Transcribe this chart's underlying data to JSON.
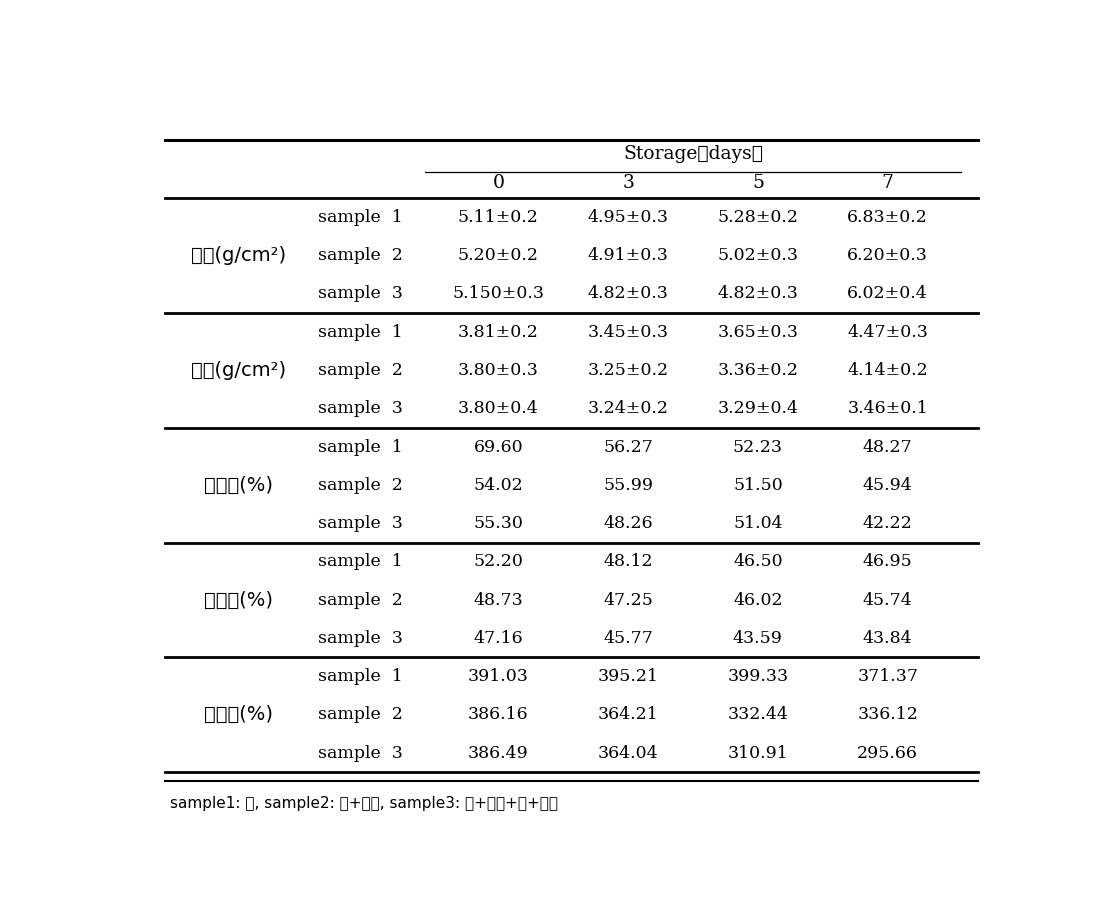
{
  "storage_label": "Storage（days）",
  "col_headers": [
    "0",
    "3",
    "5",
    "7"
  ],
  "row_groups": [
    {
      "label": "강도(g/cm²)",
      "rows": [
        {
          "sample": "sample  1",
          "values": [
            "5.11±0.2",
            "4.95±0.3",
            "5.28±0.2",
            "6.83±0.2"
          ]
        },
        {
          "sample": "sample  2",
          "values": [
            "5.20±0.2",
            "4.91±0.3",
            "5.02±0.3",
            "6.20±0.3"
          ]
        },
        {
          "sample": "sample  3",
          "values": [
            "5.150±0.3",
            "4.82±0.3",
            "4.82±0.3",
            "6.02±0.4"
          ]
        }
      ]
    },
    {
      "label": "연도(g/cm²)",
      "rows": [
        {
          "sample": "sample  1",
          "values": [
            "3.81±0.2",
            "3.45±0.3",
            "3.65±0.3",
            "4.47±0.3"
          ]
        },
        {
          "sample": "sample  2",
          "values": [
            "3.80±0.3",
            "3.25±0.2",
            "3.36±0.2",
            "4.14±0.2"
          ]
        },
        {
          "sample": "sample  3",
          "values": [
            "3.80±0.4",
            "3.24±0.2",
            "3.29±0.4",
            "3.46±0.1"
          ]
        }
      ]
    },
    {
      "label": "탄력성(%)",
      "rows": [
        {
          "sample": "sample  1",
          "values": [
            "69.60",
            "56.27",
            "52.23",
            "48.27"
          ]
        },
        {
          "sample": "sample  2",
          "values": [
            "54.02",
            "55.99",
            "51.50",
            "45.94"
          ]
        },
        {
          "sample": "sample  3",
          "values": [
            "55.30",
            "48.26",
            "51.04",
            "42.22"
          ]
        }
      ]
    },
    {
      "label": "응집성(%)",
      "rows": [
        {
          "sample": "sample  1",
          "values": [
            "52.20",
            "48.12",
            "46.50",
            "46.95"
          ]
        },
        {
          "sample": "sample  2",
          "values": [
            "48.73",
            "47.25",
            "46.02",
            "45.74"
          ]
        },
        {
          "sample": "sample  3",
          "values": [
            "47.16",
            "45.77",
            "43.59",
            "43.84"
          ]
        }
      ]
    },
    {
      "label": "씨음성(%)",
      "rows": [
        {
          "sample": "sample  1",
          "values": [
            "391.03",
            "395.21",
            "399.33",
            "371.37"
          ]
        },
        {
          "sample": "sample  2",
          "values": [
            "386.16",
            "364.21",
            "332.44",
            "336.12"
          ]
        },
        {
          "sample": "sample  3",
          "values": [
            "386.49",
            "364.04",
            "310.91",
            "295.66"
          ]
        }
      ]
    }
  ],
  "footnote": "sample1: 감, sample2: 감+키위, sample3: 감+키위+배+산약",
  "fig_width": 11.16,
  "fig_height": 9.07,
  "dpi": 100
}
